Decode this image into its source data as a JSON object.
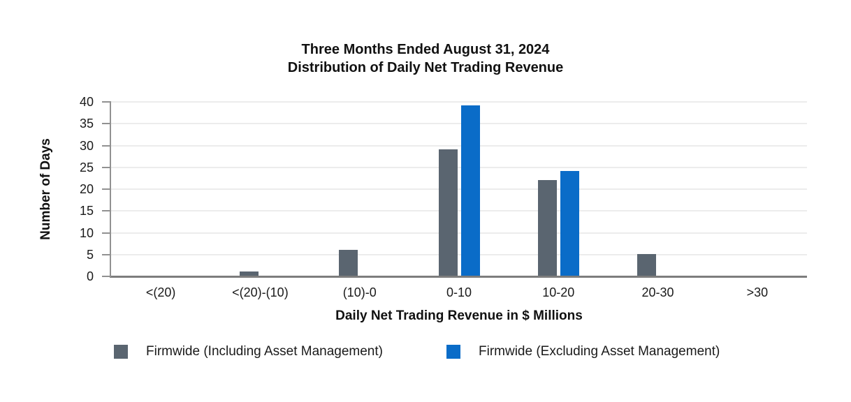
{
  "chart_data": {
    "type": "bar",
    "title": "Three Months Ended August 31, 2024",
    "subtitle": "Distribution of Daily Net Trading Revenue",
    "xlabel": "Daily Net Trading Revenue in $ Millions",
    "ylabel": "Number of Days",
    "categories": [
      "<(20)",
      "<(20)-(10)",
      "(10)-0",
      "0-10",
      "10-20",
      "20-30",
      ">30"
    ],
    "series": [
      {
        "name": "Firmwide (Including Asset Management)",
        "color": "#5a6570",
        "values": [
          0,
          1,
          6,
          29,
          22,
          5,
          0
        ]
      },
      {
        "name": "Firmwide (Excluding Asset Management)",
        "color": "#0a6cc8",
        "values": [
          0,
          0,
          0,
          39,
          24,
          0,
          0
        ]
      }
    ],
    "ylim": [
      0,
      40
    ],
    "yticks": [
      0,
      5,
      10,
      15,
      20,
      25,
      30,
      35,
      40
    ],
    "grid": true,
    "legend_position": "bottom"
  },
  "colors": {
    "series_including": "#5a6570",
    "series_excluding": "#0a6cc8",
    "axis": "#919191",
    "baseline": "#7d7d7d",
    "gridline": "#ececec",
    "background": "#ffffff",
    "text": "#1a1a1a"
  }
}
